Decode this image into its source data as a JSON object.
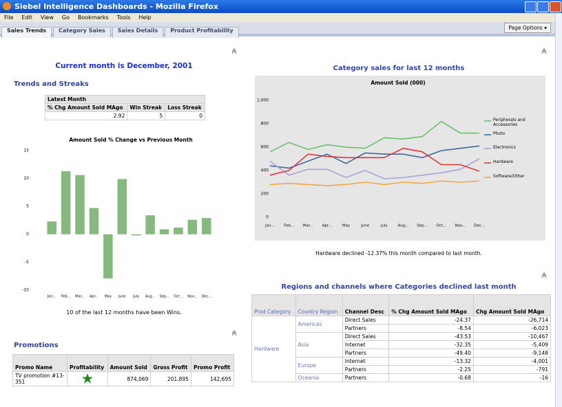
{
  "window": {
    "title": "Siebel Intelligence Dashboards - Mozilla Firefox"
  },
  "menu": [
    "File",
    "Edit",
    "View",
    "Go",
    "Bookmarks",
    "Tools",
    "Help"
  ],
  "tabs": [
    "Sales Trends",
    "Category Sales",
    "Sales Details",
    "Product Profitability"
  ],
  "page_options": "Page Options",
  "left": {
    "heading": "Current month is December, 2001",
    "section": "Trends and Streaks",
    "streak_table": {
      "group": "Latest Month",
      "headers": [
        "% Chg Amount Sold MAgo",
        "Win Streak",
        "Loss Streak"
      ],
      "rows": [
        [
          "2.92",
          "5",
          "0"
        ]
      ]
    },
    "caption": "10 of the last 12 months have been Wins.",
    "promotions": {
      "title": "Promotions",
      "headers": [
        "Promo Name",
        "Profitability",
        "Amount Sold",
        "Gross Profit",
        "Promo Profit"
      ],
      "rows": [
        {
          "name": "TV promotion #13-351",
          "values": [
            "874,069",
            "201,895",
            "142,695"
          ]
        }
      ]
    }
  },
  "right": {
    "chart_heading": "Category sales for last 12 months",
    "caption": "Hardware declined -12.37% this month compared to last month.",
    "region_title": "Regions and channels where Categories declined last month",
    "region_table": {
      "headers": [
        "Prod Category",
        "Country Region",
        "Channel Desc",
        "% Chg Amount Sold MAgo",
        "Chg Amount Sold MAgo"
      ],
      "category": "Hardware",
      "regions": [
        {
          "name": "Americas",
          "rows": [
            [
              "Direct Sales",
              "-24.37",
              "-26,714"
            ],
            [
              "Partners",
              "-8.54",
              "-6,023"
            ]
          ]
        },
        {
          "name": "Asia",
          "rows": [
            [
              "Direct Sales",
              "-43.53",
              "-10,467"
            ],
            [
              "Internet",
              "-32.35",
              "-5,409"
            ],
            [
              "Partners",
              "-49.40",
              "-9,148"
            ]
          ]
        },
        {
          "name": "Europe",
          "rows": [
            [
              "Internet",
              "-13.32",
              "-4,001"
            ],
            [
              "Partners",
              "-2.25",
              "-791"
            ]
          ]
        },
        {
          "name": "Oceania",
          "rows": [
            [
              "Partners",
              "-0.68",
              "-16"
            ]
          ]
        }
      ]
    }
  },
  "chart_data": [
    {
      "type": "bar",
      "title": "Amount Sold % Change vs Previous Month",
      "categories": [
        "Jan...",
        "Feb...",
        "Mar...",
        "Apr...",
        "May",
        "June",
        "July",
        "Aug...",
        "Sep...",
        "Oct...",
        "Nov...",
        "Dec..."
      ],
      "values": [
        2.3,
        11.3,
        10.6,
        4.7,
        -7.9,
        9.9,
        -0.2,
        3.4,
        0.9,
        1.2,
        2.6,
        2.92
      ],
      "color": "#86b97e",
      "ylim": [
        -10,
        15
      ],
      "yticks": [
        15,
        10,
        5,
        0,
        -5,
        -10
      ],
      "grid": false
    },
    {
      "type": "line",
      "title": "Amount Sold (000)",
      "categories": [
        "Jan...",
        "Feb...",
        "Mar...",
        "Apr...",
        "May",
        "June",
        "July",
        "Aug...",
        "Sep...",
        "Oct...",
        "Nov...",
        "Dec..."
      ],
      "series": [
        {
          "name": "Peripherals and Accessories",
          "color": "#6cbf6c",
          "values": [
            560,
            640,
            580,
            620,
            600,
            590,
            680,
            670,
            690,
            820,
            720,
            720
          ]
        },
        {
          "name": "Photo",
          "color": "#3d6a9e",
          "values": [
            440,
            420,
            480,
            540,
            460,
            550,
            540,
            540,
            510,
            570,
            590,
            610
          ]
        },
        {
          "name": "Electronics",
          "color": "#a9a2d8",
          "values": [
            480,
            360,
            410,
            410,
            340,
            400,
            330,
            340,
            360,
            380,
            410,
            500
          ]
        },
        {
          "name": "Hardware",
          "color": "#d9363a",
          "values": [
            360,
            400,
            540,
            520,
            510,
            510,
            510,
            590,
            560,
            450,
            450,
            394
          ]
        },
        {
          "name": "Software/Other",
          "color": "#f4a640",
          "values": [
            280,
            290,
            280,
            270,
            280,
            300,
            280,
            300,
            290,
            310,
            300,
            310
          ]
        }
      ],
      "ylim": [
        0,
        1000
      ],
      "yticks": [
        0,
        200,
        400,
        600,
        800,
        {
          "value": 1000,
          "label": "1,000"
        }
      ],
      "grid": false,
      "legend": "right"
    }
  ]
}
